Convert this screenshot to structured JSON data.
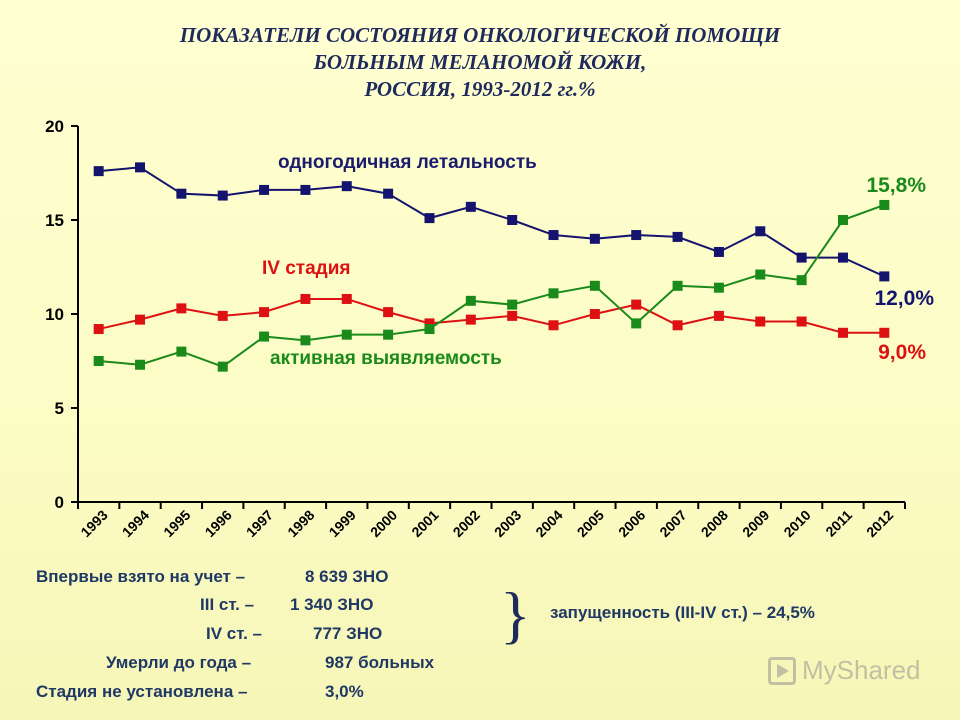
{
  "title": {
    "line1": "ПОКАЗАТЕЛИ СОСТОЯНИЯ ОНКОЛОГИЧЕСКОЙ ПОМОЩИ",
    "line2": "БОЛЬНЫМ МЕЛАНОМОЙ КОЖИ,",
    "line3": "РОССИЯ, 1993-2012 гг.%"
  },
  "chart_data": {
    "type": "line",
    "categories": [
      "1993",
      "1994",
      "1995",
      "1996",
      "1997",
      "1998",
      "1999",
      "2000",
      "2001",
      "2002",
      "2003",
      "2004",
      "2005",
      "2006",
      "2007",
      "2008",
      "2009",
      "2010",
      "2011",
      "2012"
    ],
    "ylim": [
      0,
      20
    ],
    "yticks": [
      0,
      5,
      10,
      15,
      20
    ],
    "grid": false,
    "series": [
      {
        "name": "одногодичная летальность",
        "color": "#14146e",
        "values": [
          17.6,
          17.8,
          16.4,
          16.3,
          16.6,
          16.6,
          16.8,
          16.4,
          15.1,
          15.7,
          15.0,
          14.2,
          14.0,
          14.2,
          14.1,
          13.3,
          14.4,
          13.0,
          13.0,
          12.0
        ],
        "end_label": "12,0%"
      },
      {
        "name": "IV стадия",
        "color": "#dd1111",
        "values": [
          9.2,
          9.7,
          10.3,
          9.9,
          10.1,
          10.8,
          10.8,
          10.1,
          9.5,
          9.7,
          9.9,
          9.4,
          10.0,
          10.5,
          9.4,
          9.9,
          9.6,
          9.6,
          9.0,
          9.0
        ],
        "end_label": "9,0%"
      },
      {
        "name": "активная выявляемость",
        "color": "#1a8a1a",
        "values": [
          7.5,
          7.3,
          8.0,
          7.2,
          8.8,
          8.6,
          8.9,
          8.9,
          9.2,
          10.7,
          10.5,
          11.1,
          11.5,
          9.5,
          11.5,
          11.4,
          12.1,
          11.8,
          15.0,
          15.8
        ],
        "end_label": "15,8%"
      }
    ]
  },
  "info": {
    "line1_label": "Впервые взято на учет –",
    "line1_value": "8 639 ЗНО",
    "line2_label": "III ст. –",
    "line2_value": "1 340 ЗНО",
    "line3_label": "IV ст. –",
    "line3_value": "777 ЗНО",
    "line4_label": "Умерли до года –",
    "line4_value": "987 больных",
    "line5_label": "Стадия не установлена –",
    "line5_value": "3,0%",
    "neglect": "запущенность (III-IV ст.) – 24,5%"
  },
  "watermark": {
    "text": "MyShared",
    "icon": "play-icon"
  }
}
